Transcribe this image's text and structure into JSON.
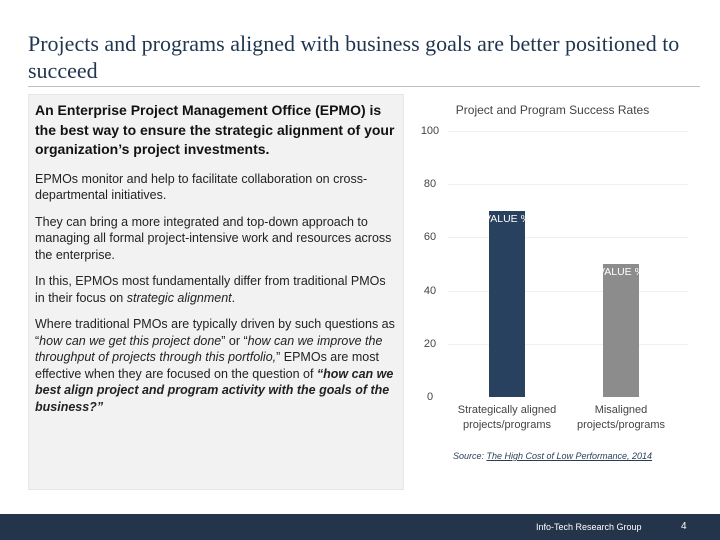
{
  "slide": {
    "title": "Projects and programs aligned with business goals are better positioned to succeed"
  },
  "left_panel": {
    "lead": "An Enterprise Project Management Office (EPMO) is the best way to ensure the strategic alignment of your organization’s project investments.",
    "p1": "EPMOs monitor and help to facilitate collaboration on cross-departmental initiatives.",
    "p2": "They can bring a more integrated and top-down approach to managing all formal project-intensive work and resources across the enterprise.",
    "p3_prefix": "In this, EPMOs most fundamentally differ from traditional PMOs in their focus on ",
    "p3_emph": "strategic alignment",
    "p3_suffix": ".",
    "p4_a": "Where traditional PMOs are typically driven by such questions as “",
    "p4_q1": "how can we get this project done",
    "p4_b": "” or “",
    "p4_q2": "how can we improve the throughput of projects through this portfolio,",
    "p4_c": "” EPMOs are most effective when they are focused on the question of ",
    "p4_strong": "“how can we best align project and program activity with the goals of the business?”"
  },
  "chart_data": {
    "type": "bar",
    "title": "Project and Program Success Rates",
    "categories": [
      "Strategically aligned projects/programs",
      "Misaligned projects/programs"
    ],
    "values": [
      70,
      50
    ],
    "data_labels": [
      "VALUE %",
      "VALUE %"
    ],
    "yticks": [
      "0",
      "20",
      "40",
      "60",
      "80",
      "100"
    ],
    "ylim": [
      0,
      100
    ],
    "colors": [
      "#27415f",
      "#8c8c8c"
    ],
    "grid": true,
    "legend": "none"
  },
  "source": {
    "prefix": "Source: ",
    "link_text": "The High Cost of Low Performance, 2014"
  },
  "footer": {
    "org": "Info-Tech Research Group",
    "page": "4"
  }
}
